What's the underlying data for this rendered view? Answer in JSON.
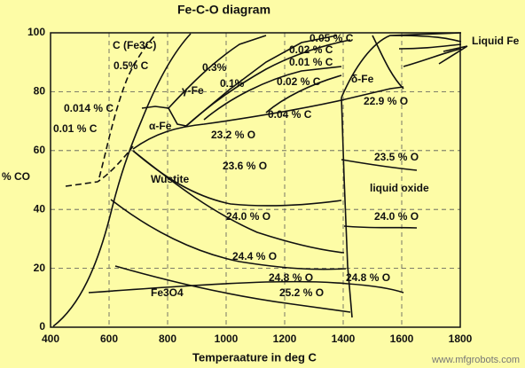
{
  "chart_data": {
    "type": "phase",
    "title": "Fe-C-O diagram",
    "x_label": "Temperaature in deg C",
    "y_label": "% CO",
    "xlim": [
      400,
      1800
    ],
    "ylim": [
      0,
      100
    ],
    "xticks": [
      400,
      600,
      800,
      1000,
      1200,
      1400,
      1600,
      1800
    ],
    "yticks": [
      0,
      20,
      40,
      60,
      80,
      100
    ],
    "grid": true,
    "annotations": [
      "C (Fe3C)",
      "0.5% C",
      "0.014 % C",
      "0.01 % C",
      "α-Fe",
      "γ-Fe",
      "0.3%",
      "0.1%",
      "0.05 % C",
      "0.02 % C",
      "0.01 % C",
      "0.02 % C",
      "δ-Fe",
      "Liquid Fe",
      "0.04 % C",
      "22.9 % O",
      "23.2 % O",
      "23.6 % O",
      "Wustite",
      "23.5 % O",
      "liquid oxide",
      "24.0 % O",
      "24.0 % O",
      "24.4 % O",
      "24.8 % O",
      "24.8 % O",
      "25.2 % O",
      "Fe3O4"
    ]
  },
  "source": "www.mfgrobots.com"
}
